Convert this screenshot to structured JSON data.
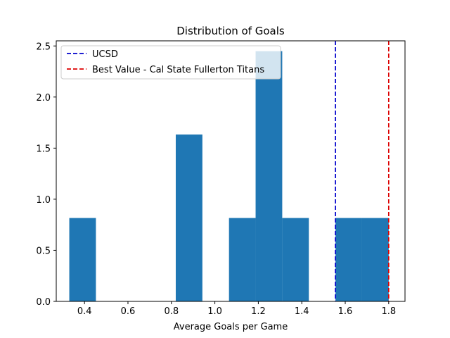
{
  "chart_data": {
    "type": "bar",
    "title": "Distribution of Goals",
    "xlabel": "Average Goals per Game",
    "ylabel": "",
    "xlim": [
      0.27,
      1.875
    ],
    "ylim": [
      0,
      2.55
    ],
    "xticks": [
      0.4,
      0.6,
      0.8,
      1.0,
      1.2,
      1.4,
      1.6,
      1.8
    ],
    "xtick_labels": [
      "0.4",
      "0.6",
      "0.8",
      "1.0",
      "1.2",
      "1.4",
      "1.6",
      "1.8"
    ],
    "yticks": [
      0.0,
      0.5,
      1.0,
      1.5,
      2.0,
      2.5
    ],
    "ytick_labels": [
      "0.0",
      "0.5",
      "1.0",
      "1.5",
      "2.0",
      "2.5"
    ],
    "bar_color": "#1f77b4",
    "bins": [
      {
        "x0": 0.33,
        "x1": 0.4525,
        "value": 0.816
      },
      {
        "x0": 0.4525,
        "x1": 0.575,
        "value": 0
      },
      {
        "x0": 0.575,
        "x1": 0.6975,
        "value": 0
      },
      {
        "x0": 0.6975,
        "x1": 0.82,
        "value": 0
      },
      {
        "x0": 0.82,
        "x1": 0.9425,
        "value": 1.633
      },
      {
        "x0": 0.9425,
        "x1": 1.065,
        "value": 0
      },
      {
        "x0": 1.065,
        "x1": 1.1875,
        "value": 0.816
      },
      {
        "x0": 1.1875,
        "x1": 1.31,
        "value": 2.449
      },
      {
        "x0": 1.31,
        "x1": 1.4325,
        "value": 0.816
      },
      {
        "x0": 1.4325,
        "x1": 1.555,
        "value": 0
      },
      {
        "x0": 1.555,
        "x1": 1.6775,
        "value": 0.816
      },
      {
        "x0": 1.6775,
        "x1": 1.8,
        "value": 0.816
      }
    ],
    "reference_lines": [
      {
        "name": "UCSD",
        "x": 1.555,
        "color": "#0000cc",
        "style": "dashed"
      },
      {
        "name": "Best Value - Cal State Fullerton Titans",
        "x": 1.8,
        "color": "#dd0000",
        "style": "dashed"
      }
    ],
    "legend": "top-left",
    "grid": false
  }
}
